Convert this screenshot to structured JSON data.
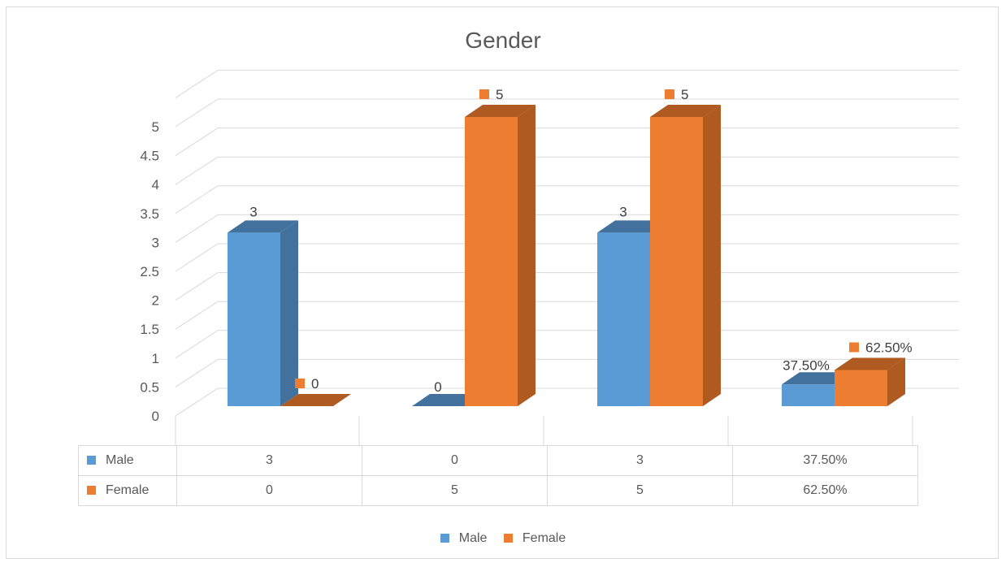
{
  "chart_data": {
    "type": "bar",
    "title": "Gender",
    "categories": [
      "",
      "",
      "",
      ""
    ],
    "series": [
      {
        "name": "Male",
        "values": [
          3,
          0,
          3,
          0.375
        ],
        "labels": [
          "3",
          "0",
          "3",
          "37.50%"
        ],
        "color": "#5b9bd5",
        "side_color": "#41719c"
      },
      {
        "name": "Female",
        "values": [
          0,
          5,
          5,
          0.625
        ],
        "labels": [
          "0",
          "5",
          "5",
          "62.50%"
        ],
        "color": "#ed7d31",
        "side_color": "#ae5a21"
      }
    ],
    "yticks": [
      "0",
      "0.5",
      "1",
      "1.5",
      "2",
      "2.5",
      "3",
      "3.5",
      "4",
      "4.5",
      "5"
    ],
    "ylim": [
      0,
      5.5
    ],
    "grid": true,
    "data_table": true,
    "legend_position": "bottom"
  }
}
